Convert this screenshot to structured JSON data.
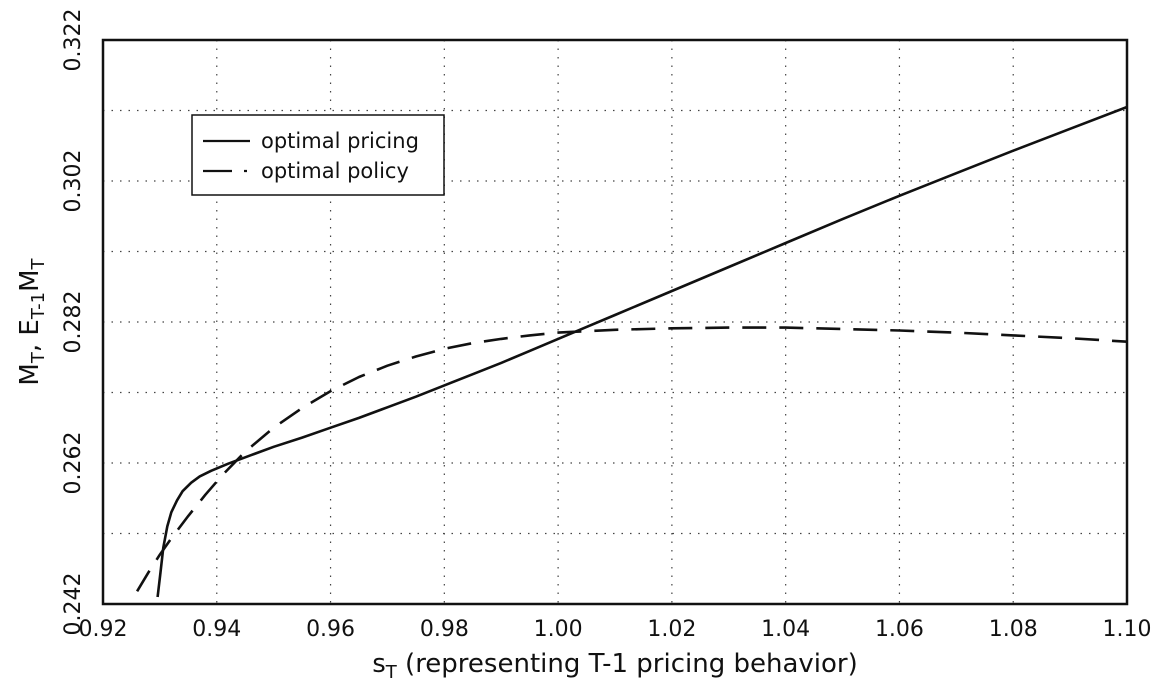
{
  "chart_data": {
    "type": "line",
    "title": "",
    "xlabel": "sT (representing T-1 pricing behavior)",
    "xlabel_main": "s",
    "xlabel_sub": "T",
    "xlabel_rest": " (representing T-1 pricing behavior)",
    "ylabel": "MT, ET-1MT",
    "ylabel_parts": {
      "a": "M",
      "a_sub": "T",
      "b": ", E",
      "b_sub": "T-1",
      "c": "M",
      "c_sub": "T"
    },
    "xlim": [
      0.92,
      1.1
    ],
    "ylim": [
      0.242,
      0.322
    ],
    "xticks": [
      "0.92",
      "0.94",
      "0.96",
      "0.98",
      "1.00",
      "1.02",
      "1.04",
      "1.06",
      "1.08",
      "1.10"
    ],
    "xtick_values": [
      0.92,
      0.94,
      0.96,
      0.98,
      1.0,
      1.02,
      1.04,
      1.06,
      1.08,
      1.1
    ],
    "yticks": [
      "0.242",
      "0.262",
      "0.282",
      "0.302",
      "0.322"
    ],
    "ytick_values": [
      0.242,
      0.262,
      0.282,
      0.302,
      0.322
    ],
    "grid": true,
    "legend_position": "upper-left",
    "series": [
      {
        "name": "optimal pricing",
        "style": "solid",
        "color": "#111111",
        "x": [
          0.9296,
          0.9301,
          0.9306,
          0.9313,
          0.932,
          0.933,
          0.934,
          0.9355,
          0.937,
          0.939,
          0.942,
          0.946,
          0.95,
          0.955,
          0.96,
          0.965,
          0.97,
          0.975,
          0.98,
          0.985,
          0.99,
          0.995,
          1.0,
          1.005,
          1.01,
          1.02,
          1.03,
          1.04,
          1.05,
          1.06,
          1.07,
          1.08,
          1.09,
          1.1
        ],
        "y": [
          0.243,
          0.2465,
          0.25,
          0.253,
          0.255,
          0.2567,
          0.258,
          0.2592,
          0.2601,
          0.2609,
          0.2619,
          0.2631,
          0.2643,
          0.2656,
          0.267,
          0.2684,
          0.2699,
          0.2714,
          0.273,
          0.2746,
          0.2762,
          0.2779,
          0.2796,
          0.2813,
          0.283,
          0.2864,
          0.2898,
          0.2932,
          0.2966,
          0.2999,
          0.3031,
          0.3063,
          0.3094,
          0.3125
        ]
      },
      {
        "name": "optimal policy",
        "style": "dashed",
        "color": "#111111",
        "x": [
          0.926,
          0.928,
          0.93,
          0.932,
          0.935,
          0.938,
          0.941,
          0.945,
          0.95,
          0.955,
          0.96,
          0.965,
          0.97,
          0.975,
          0.98,
          0.985,
          0.99,
          0.995,
          1.0,
          1.01,
          1.02,
          1.03,
          1.04,
          1.05,
          1.06,
          1.07,
          1.08,
          1.09,
          1.1
        ],
        "y": [
          0.2438,
          0.2465,
          0.249,
          0.2513,
          0.2545,
          0.2575,
          0.2603,
          0.2636,
          0.267,
          0.2698,
          0.2722,
          0.2742,
          0.2758,
          0.2771,
          0.2782,
          0.279,
          0.2796,
          0.2801,
          0.2805,
          0.2809,
          0.2811,
          0.2812,
          0.2812,
          0.281,
          0.2808,
          0.2805,
          0.2801,
          0.2797,
          0.2792
        ]
      }
    ]
  }
}
